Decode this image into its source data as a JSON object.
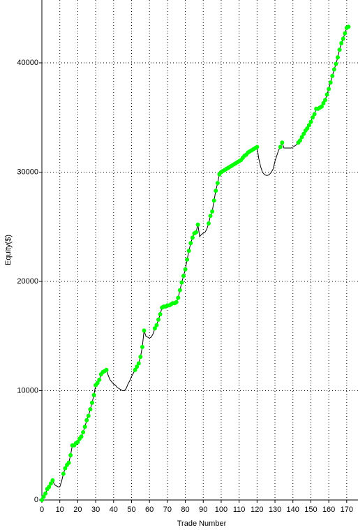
{
  "chart_data": {
    "type": "line",
    "x_label": "Trade Number",
    "y_label": "Equity($)",
    "x": [
      0,
      1,
      2,
      3,
      4,
      5,
      6,
      7,
      8,
      9,
      10,
      11,
      12,
      13,
      14,
      15,
      16,
      17,
      18,
      19,
      20,
      21,
      22,
      23,
      24,
      25,
      26,
      27,
      28,
      29,
      30,
      31,
      32,
      33,
      34,
      35,
      36,
      37,
      38,
      39,
      40,
      41,
      42,
      43,
      44,
      45,
      46,
      47,
      48,
      49,
      50,
      51,
      52,
      53,
      54,
      55,
      56,
      57,
      58,
      59,
      60,
      61,
      62,
      63,
      64,
      65,
      66,
      67,
      68,
      69,
      70,
      71,
      72,
      73,
      74,
      75,
      76,
      77,
      78,
      79,
      80,
      81,
      82,
      83,
      84,
      85,
      86,
      87,
      88,
      89,
      90,
      91,
      92,
      93,
      94,
      95,
      96,
      97,
      98,
      99,
      100,
      101,
      102,
      103,
      104,
      105,
      106,
      107,
      108,
      109,
      110,
      111,
      112,
      113,
      114,
      115,
      116,
      117,
      118,
      119,
      120,
      121,
      122,
      123,
      124,
      125,
      126,
      127,
      128,
      129,
      130,
      131,
      132,
      133,
      134,
      135,
      136,
      137,
      138,
      139,
      140,
      141,
      142,
      143,
      144,
      145,
      146,
      147,
      148,
      149,
      150,
      151,
      152,
      153,
      154,
      155,
      156,
      157,
      158,
      159,
      160,
      161,
      162,
      163,
      164,
      165,
      166,
      167,
      168,
      169,
      170,
      171
    ],
    "series": [
      {
        "color": "#000000",
        "marker_color": "#00ff00",
        "values": [
          0,
          300,
          600,
          1000,
          1200,
          1500,
          1800,
          1400,
          1300,
          1200,
          1200,
          1700,
          2400,
          2900,
          3200,
          3400,
          4100,
          5000,
          5000,
          5200,
          5300,
          5600,
          5800,
          6200,
          6700,
          7300,
          7700,
          8300,
          8900,
          9600,
          10500,
          10700,
          11000,
          11500,
          11700,
          11800,
          11900,
          11400,
          11000,
          10800,
          10600,
          10500,
          10300,
          10200,
          10100,
          10000,
          10000,
          10200,
          10600,
          10900,
          11300,
          11600,
          11900,
          12200,
          12500,
          13100,
          14000,
          15500,
          15000,
          14900,
          14800,
          14900,
          15200,
          15700,
          16000,
          16500,
          17000,
          17600,
          17700,
          17700,
          17800,
          17800,
          17900,
          18000,
          18000,
          18100,
          18500,
          19200,
          19900,
          20500,
          21100,
          22000,
          22800,
          23500,
          24000,
          24400,
          24500,
          25200,
          24100,
          24300,
          24400,
          24500,
          24800,
          25300,
          26000,
          26400,
          27400,
          28300,
          29000,
          29800,
          30000,
          30100,
          30200,
          30300,
          30400,
          30500,
          30600,
          30700,
          30800,
          30900,
          31000,
          31100,
          31300,
          31500,
          31600,
          31800,
          31900,
          32000,
          32100,
          32200,
          32300,
          31200,
          30500,
          30000,
          29800,
          29700,
          29700,
          29800,
          30000,
          30300,
          31000,
          31500,
          32000,
          32300,
          32700,
          32200,
          32200,
          32200,
          32200,
          32200,
          32300,
          32400,
          32500,
          32700,
          32900,
          33200,
          33500,
          33800,
          34000,
          34300,
          34600,
          35000,
          35300,
          35800,
          35800,
          35900,
          36000,
          36300,
          36600,
          37100,
          37600,
          38200,
          38800,
          39400,
          39900,
          40500,
          41200,
          41800,
          42200,
          42700,
          43200,
          43300
        ]
      }
    ],
    "xlim": [
      0,
      176.3
    ],
    "ylim": [
      0,
      45750
    ],
    "xticks": [
      0,
      10,
      20,
      30,
      40,
      50,
      60,
      70,
      80,
      90,
      100,
      110,
      120,
      130,
      140,
      150,
      160,
      170
    ],
    "yticks": [
      0,
      10000,
      20000,
      30000,
      40000
    ],
    "grid": true
  }
}
